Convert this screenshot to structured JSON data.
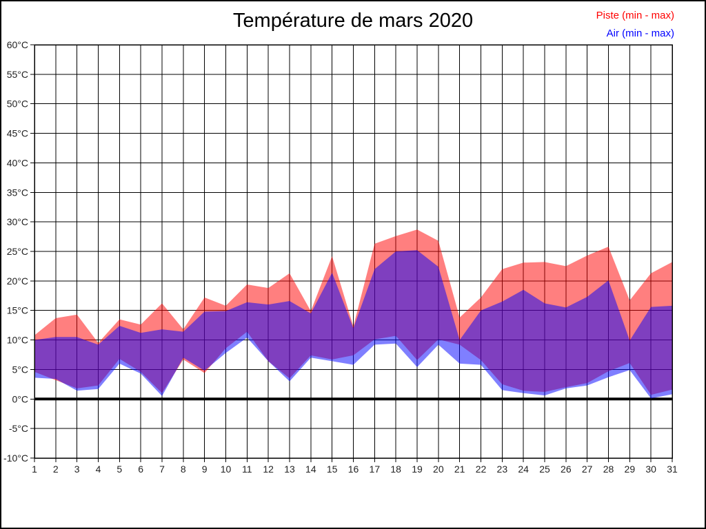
{
  "title": "Température de mars 2020",
  "legend": [
    {
      "label": "Piste (min - max)",
      "color": "#ff0000"
    },
    {
      "label": "Air (min - max)",
      "color": "#0000ff"
    }
  ],
  "y_axis": {
    "unit": "°C",
    "min": -10,
    "max": 60,
    "step": 5,
    "tick_labels": [
      "60°C",
      "55°C",
      "50°C",
      "45°C",
      "40°C",
      "35°C",
      "30°C",
      "25°C",
      "20°C",
      "15°C",
      "10°C",
      "5°C",
      "0°C",
      "-5°C",
      "-10°C"
    ]
  },
  "x_axis": {
    "tick_labels": [
      "1",
      "2",
      "3",
      "4",
      "5",
      "6",
      "7",
      "8",
      "9",
      "10",
      "11",
      "12",
      "13",
      "14",
      "15",
      "16",
      "17",
      "18",
      "19",
      "20",
      "21",
      "22",
      "23",
      "24",
      "25",
      "26",
      "27",
      "28",
      "29",
      "30",
      "31"
    ]
  },
  "chart_data": {
    "type": "area",
    "title": "Température de mars 2020",
    "x": [
      1,
      2,
      3,
      4,
      5,
      6,
      7,
      8,
      9,
      10,
      11,
      12,
      13,
      14,
      15,
      16,
      17,
      18,
      19,
      20,
      21,
      22,
      23,
      24,
      25,
      26,
      27,
      28,
      29,
      30,
      31
    ],
    "xlabel": "",
    "ylabel": "",
    "ylim": [
      -10,
      60
    ],
    "grid": true,
    "legend_position": "top-right",
    "zero_line": true,
    "band_colors": {
      "piste_fill": "#ff8080",
      "air_fill": "#8080ff",
      "overlap_fill": "#8040c0"
    },
    "series": [
      {
        "id": "piste",
        "name": "Piste (min - max)",
        "color": "#ff0000",
        "fill_opacity": 0.5,
        "min": [
          4.6,
          3.2,
          1.8,
          2.3,
          6.8,
          4.6,
          1.0,
          6.7,
          4.4,
          8.6,
          11.4,
          6.4,
          3.5,
          7.4,
          6.7,
          7.4,
          10.1,
          10.7,
          6.6,
          10.1,
          9.2,
          6.6,
          2.5,
          1.4,
          1.2,
          2.0,
          2.7,
          4.7,
          6.1,
          0.7,
          1.6
        ],
        "max": [
          10.8,
          13.7,
          14.3,
          9.5,
          13.5,
          12.6,
          16.2,
          11.8,
          17.2,
          15.8,
          19.4,
          18.8,
          21.3,
          14.9,
          24.2,
          12.3,
          26.3,
          27.6,
          28.7,
          26.8,
          13.8,
          17.2,
          22.0,
          23.1,
          23.2,
          22.5,
          24.3,
          25.8,
          16.7,
          21.3,
          23.2
        ]
      },
      {
        "id": "air",
        "name": "Air (min - max)",
        "color": "#0000ff",
        "fill_opacity": 0.5,
        "min": [
          3.6,
          3.4,
          1.4,
          1.7,
          6.0,
          4.3,
          0.5,
          7.0,
          4.8,
          7.8,
          10.4,
          6.4,
          3.0,
          7.0,
          6.4,
          5.8,
          9.2,
          9.4,
          5.4,
          9.2,
          6.0,
          5.8,
          1.5,
          1.0,
          0.6,
          1.8,
          2.3,
          3.7,
          4.9,
          0.1,
          0.8
        ],
        "max": [
          10.0,
          10.5,
          10.5,
          9.2,
          12.4,
          11.2,
          11.8,
          11.4,
          14.8,
          14.9,
          16.4,
          16.0,
          16.6,
          14.5,
          21.4,
          12.0,
          22.0,
          25.0,
          25.2,
          22.4,
          10.0,
          15.0,
          16.5,
          18.5,
          16.2,
          15.5,
          17.3,
          20.1,
          9.9,
          15.6,
          15.8
        ]
      }
    ]
  }
}
